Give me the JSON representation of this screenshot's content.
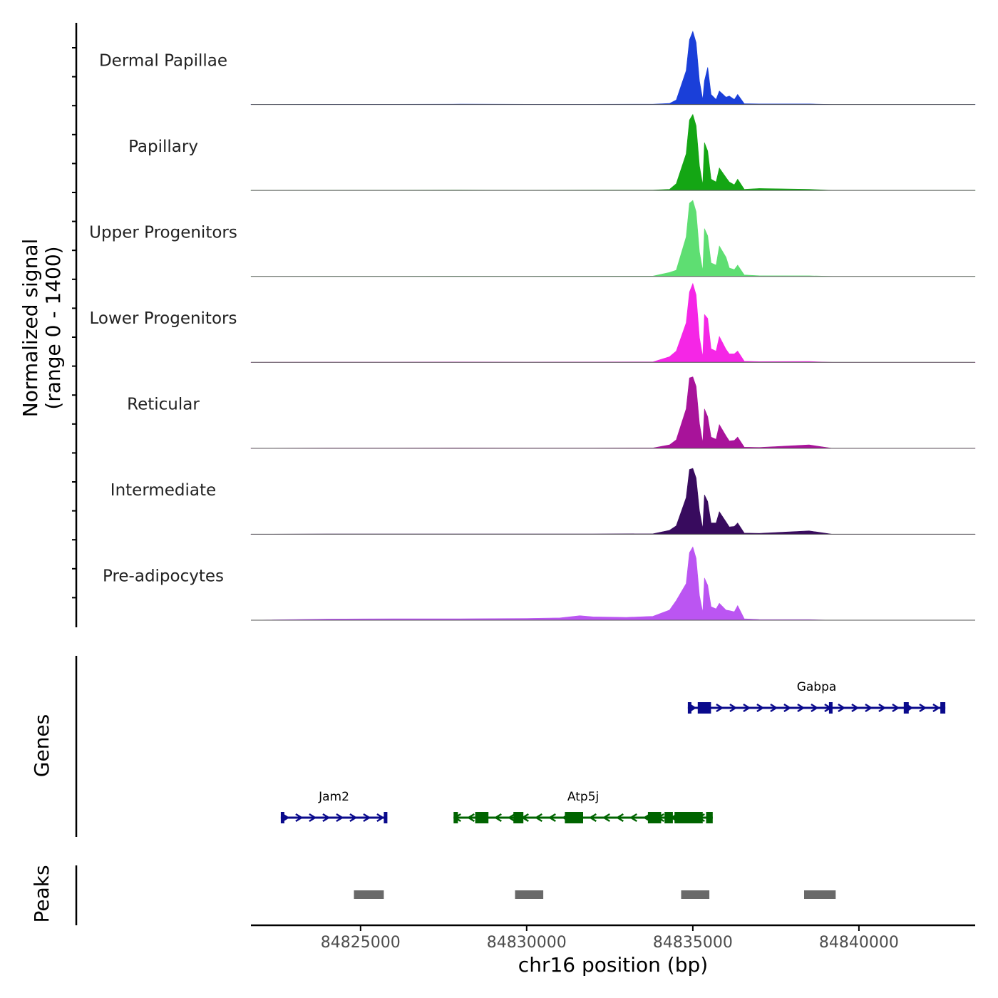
{
  "chart_data": {
    "type": "area",
    "title": "",
    "xlabel": "chr16 position (bp)",
    "xlim": [
      84821700,
      84843500
    ],
    "x_ticks": [
      {
        "value": 84825000,
        "label": "84825000"
      },
      {
        "value": 84830000,
        "label": "84830000"
      },
      {
        "value": 84835000,
        "label": "84835000"
      },
      {
        "value": 84840000,
        "label": "84840000"
      }
    ],
    "coverage": {
      "ylabel_line1": "Normalized signal",
      "ylabel_line2": "(range 0 - 1400)",
      "ylim": [
        0,
        1400
      ],
      "baseline_color": "#555555",
      "tracks": [
        {
          "name": "Dermal Papillae",
          "color": "#1a3fd9",
          "x": [
            84821700,
            84824000,
            84826000,
            84828000,
            84830000,
            84832000,
            84833800,
            84834300,
            84834500,
            84834800,
            84834900,
            84835000,
            84835100,
            84835200,
            84835300,
            84835350,
            84835450,
            84835550,
            84835700,
            84835800,
            84836000,
            84836100,
            84836250,
            84836350,
            84836550,
            84837000,
            84838500,
            84839200,
            84843500
          ],
          "y": [
            0,
            4,
            3,
            6,
            3,
            4,
            5,
            18,
            80,
            600,
            1150,
            1300,
            1100,
            420,
            90,
            420,
            660,
            180,
            90,
            240,
            130,
            150,
            90,
            180,
            15,
            10,
            10,
            0,
            0
          ]
        },
        {
          "name": "Papillary",
          "color": "#14a614",
          "x": [
            84821700,
            84824000,
            84826000,
            84828000,
            84830000,
            84832000,
            84833800,
            84834300,
            84834500,
            84834800,
            84834900,
            84835000,
            84835100,
            84835200,
            84835300,
            84835350,
            84835450,
            84835550,
            84835700,
            84835800,
            84836000,
            84836100,
            84836250,
            84836350,
            84836550,
            84837000,
            84838500,
            84839200,
            84843500
          ],
          "y": [
            0,
            3,
            4,
            6,
            3,
            5,
            5,
            20,
            120,
            650,
            1250,
            1350,
            1150,
            440,
            100,
            850,
            700,
            200,
            150,
            400,
            230,
            150,
            100,
            200,
            20,
            35,
            20,
            0,
            0
          ]
        },
        {
          "name": "Upper Progenitors",
          "color": "#5ede72",
          "x": [
            84821700,
            84824000,
            84826000,
            84828000,
            84830000,
            84832000,
            84833800,
            84834300,
            84834500,
            84834800,
            84834900,
            84835000,
            84835100,
            84835200,
            84835300,
            84835350,
            84835450,
            84835550,
            84835700,
            84835800,
            84836000,
            84836100,
            84836250,
            84836350,
            84836550,
            84837000,
            84838500,
            84839200,
            84843500
          ],
          "y": [
            0,
            2,
            3,
            4,
            3,
            4,
            5,
            70,
            110,
            700,
            1300,
            1350,
            1150,
            440,
            100,
            850,
            720,
            240,
            200,
            540,
            340,
            150,
            120,
            200,
            25,
            12,
            10,
            0,
            0
          ]
        },
        {
          "name": "Lower Progenitors",
          "color": "#f526e6",
          "x": [
            84821700,
            84824000,
            84826000,
            84828000,
            84830000,
            84832000,
            84833800,
            84834300,
            84834500,
            84834800,
            84834900,
            84835000,
            84835100,
            84835200,
            84835300,
            84835350,
            84835450,
            84835550,
            84835700,
            84835800,
            84836000,
            84836100,
            84836250,
            84836350,
            84836550,
            84837000,
            84838500,
            84839200,
            84843500
          ],
          "y": [
            0,
            4,
            4,
            6,
            4,
            6,
            8,
            100,
            200,
            700,
            1250,
            1400,
            1200,
            440,
            100,
            850,
            780,
            240,
            200,
            460,
            230,
            150,
            150,
            200,
            20,
            12,
            15,
            0,
            0
          ]
        },
        {
          "name": "Reticular",
          "color": "#a8139a",
          "x": [
            84821700,
            84824000,
            84826000,
            84828000,
            84830000,
            84832000,
            84833800,
            84834300,
            84834500,
            84834800,
            84834900,
            84835000,
            84835100,
            84835200,
            84835300,
            84835350,
            84835450,
            84835550,
            84835700,
            84835800,
            84836000,
            84836100,
            84836250,
            84836350,
            84836550,
            84837000,
            84838500,
            84839200,
            84843500
          ],
          "y": [
            0,
            3,
            4,
            6,
            4,
            5,
            6,
            60,
            150,
            700,
            1250,
            1270,
            1100,
            440,
            100,
            700,
            560,
            200,
            160,
            420,
            220,
            130,
            140,
            200,
            20,
            15,
            60,
            0,
            0
          ]
        },
        {
          "name": "Intermediate",
          "color": "#380b5e",
          "x": [
            84821700,
            84824000,
            84826000,
            84828000,
            84830000,
            84832000,
            84833800,
            84834300,
            84834500,
            84834800,
            84834900,
            84835000,
            84835100,
            84835200,
            84835300,
            84835350,
            84835450,
            84835550,
            84835700,
            84835800,
            84836000,
            84836100,
            84836250,
            84836350,
            84836550,
            84837000,
            84838500,
            84839200,
            84843500
          ],
          "y": [
            0,
            5,
            5,
            6,
            4,
            6,
            8,
            70,
            150,
            650,
            1150,
            1170,
            1000,
            420,
            100,
            700,
            580,
            200,
            200,
            400,
            220,
            130,
            140,
            200,
            20,
            15,
            60,
            0,
            0
          ]
        },
        {
          "name": "Pre-adipocytes",
          "color": "#bb55f2",
          "x": [
            84821700,
            84824000,
            84826000,
            84828000,
            84830000,
            84831000,
            84831600,
            84832000,
            84833000,
            84833800,
            84834300,
            84834500,
            84834800,
            84834900,
            84835000,
            84835100,
            84835200,
            84835300,
            84835350,
            84835450,
            84835550,
            84835700,
            84835800,
            84836000,
            84836100,
            84836250,
            84836350,
            84836550,
            84837000,
            84838500,
            84839200,
            84843500
          ],
          "y": [
            0,
            20,
            25,
            25,
            30,
            40,
            80,
            60,
            50,
            70,
            180,
            350,
            650,
            1200,
            1300,
            1100,
            440,
            140,
            750,
            620,
            240,
            200,
            300,
            180,
            170,
            150,
            260,
            25,
            12,
            10,
            0,
            0
          ]
        }
      ]
    },
    "genes": {
      "label": "Genes",
      "items": [
        {
          "name": "Gabpa",
          "strand": "+",
          "color": "#0a0a8c",
          "start": 84834850,
          "end": 84842600,
          "exons": [
            [
              84834850,
              84834950
            ],
            [
              84835150,
              84835550
            ],
            [
              84839100,
              84839200
            ],
            [
              84841350,
              84841500
            ],
            [
              84842450,
              84842600
            ]
          ]
        },
        {
          "name": "Jam2",
          "strand": "+",
          "color": "#0a0a8c",
          "start": 84822600,
          "end": 84825800,
          "exons": [
            [
              84822600,
              84822680
            ],
            [
              84825700,
              84825800
            ]
          ]
        },
        {
          "name": "Atp5j",
          "strand": "-",
          "color": "#006400",
          "start": 84827800,
          "end": 84835600,
          "exons": [
            [
              84827800,
              84827930
            ],
            [
              84828450,
              84828850
            ],
            [
              84829600,
              84829900
            ],
            [
              84831150,
              84831700
            ],
            [
              84833650,
              84834050
            ],
            [
              84834150,
              84834400
            ],
            [
              84834450,
              84835300
            ],
            [
              84835400,
              84835600
            ]
          ]
        }
      ]
    },
    "peaks": {
      "label": "Peaks",
      "color": "#696969",
      "regions": [
        [
          84824800,
          84825700
        ],
        [
          84829650,
          84830500
        ],
        [
          84834650,
          84835500
        ],
        [
          84838350,
          84839300
        ]
      ]
    }
  }
}
